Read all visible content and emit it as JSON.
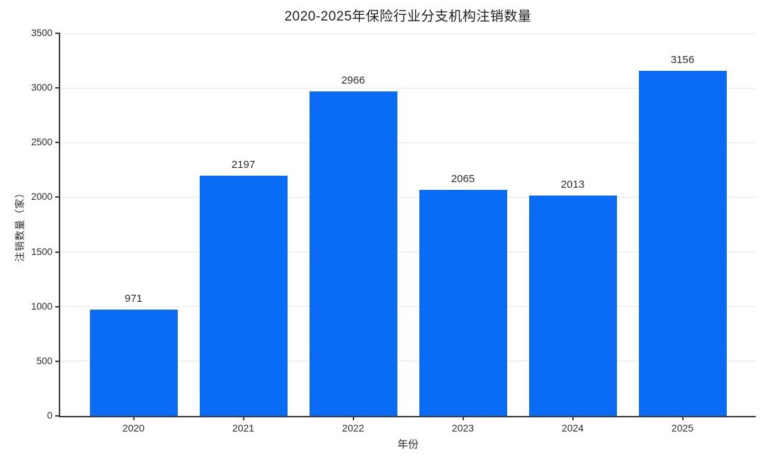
{
  "chart_data": {
    "type": "bar",
    "title": "2020-2025年保险行业分支机构注销数量",
    "xlabel": "年份",
    "ylabel": "注销数量（家）",
    "categories": [
      "2020",
      "2021",
      "2022",
      "2023",
      "2024",
      "2025"
    ],
    "values": [
      971,
      2197,
      2966,
      2065,
      2013,
      3156
    ],
    "ylim": [
      0,
      3500
    ],
    "yticks": [
      0,
      500,
      1000,
      1500,
      2000,
      2500,
      3000,
      3500
    ],
    "grid": "horizontal-only",
    "legend": "none",
    "bar_labels_shown": true,
    "colors": {
      "bar": "#0a6cf5",
      "grid": "#e7e7e7",
      "axis": "#3d3d3d",
      "text": "#2b2b2b",
      "background": "#ffffff"
    }
  }
}
